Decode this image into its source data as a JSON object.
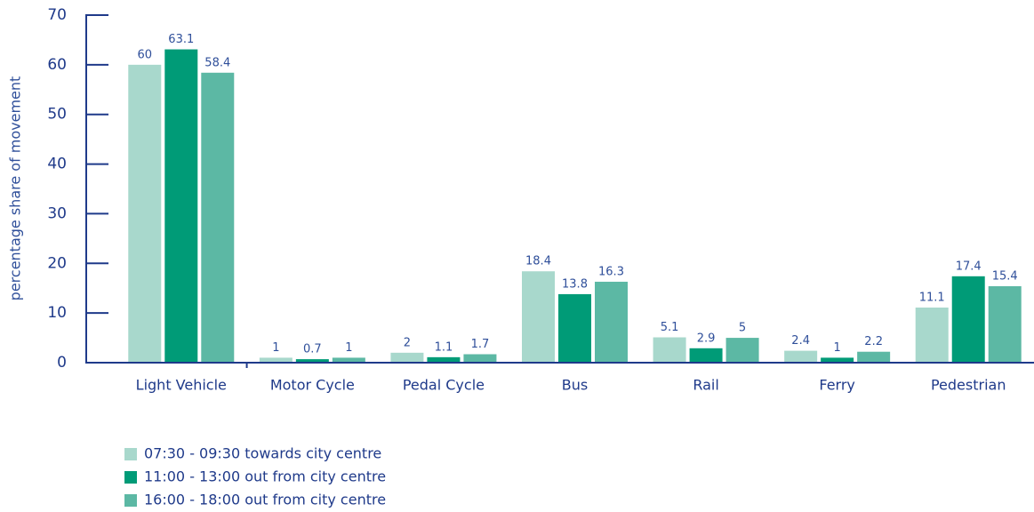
{
  "chart_data": {
    "type": "bar",
    "ylabel": "percentage share of movement",
    "categories": [
      "Light Vehicle",
      "Motor Cycle",
      "Pedal Cycle",
      "Bus",
      "Rail",
      "Ferry",
      "Pedestrian"
    ],
    "series": [
      {
        "name": "07:30 - 09:30 towards city centre",
        "color": "#a8d8cc",
        "values": [
          60,
          1,
          2,
          18.4,
          5.1,
          2.4,
          11.1
        ]
      },
      {
        "name": "11:00 - 13:00 out from city centre",
        "color": "#009b77",
        "values": [
          63.1,
          0.7,
          1.1,
          13.8,
          2.9,
          1,
          17.4
        ]
      },
      {
        "name": "16:00 - 18:00 out from city centre",
        "color": "#5cb8a4",
        "values": [
          58.4,
          1,
          1.7,
          16.3,
          5,
          2.2,
          15.4
        ]
      }
    ],
    "ylim": [
      0,
      70
    ],
    "yticks": [
      0,
      10,
      20,
      30,
      40,
      50,
      60,
      70
    ],
    "legend": "bottom-left"
  }
}
